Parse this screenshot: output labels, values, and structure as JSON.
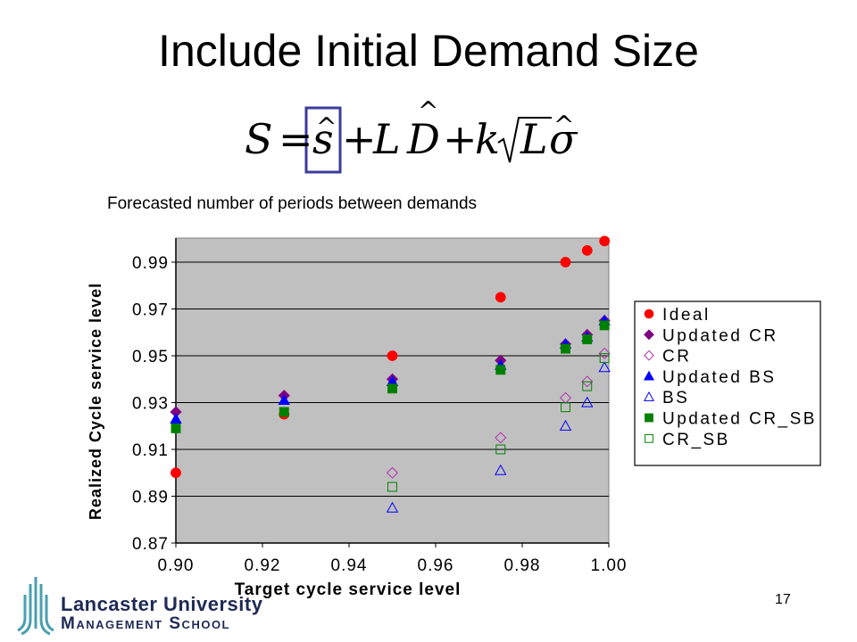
{
  "slide": {
    "title": "Include Initial Demand Size",
    "subtitle": "Forecasted number of periods between demands",
    "page_number": "17",
    "logo": {
      "line1": "Lancaster University",
      "line2": "Management School"
    }
  },
  "formula": {
    "S": "S",
    "eq": "=",
    "s": "s",
    "plus1": "+",
    "L1": "L",
    "D": "D",
    "plus2": "+",
    "k": "k",
    "L2": "L",
    "sigma": "σ",
    "hat": "^",
    "highlight_color": "#3b3b9c"
  },
  "chart_data": {
    "type": "scatter",
    "title": "",
    "xlabel": "Target cycle service level",
    "ylabel": "Realized Cycle service level",
    "xlim": [
      0.9,
      1.0
    ],
    "ylim": [
      0.87,
      1.0
    ],
    "xticks": [
      "0.90",
      "0.92",
      "0.94",
      "0.96",
      "0.98",
      "1.00"
    ],
    "yticks": [
      "0.87",
      "0.89",
      "0.91",
      "0.93",
      "0.95",
      "0.97",
      "0.99"
    ],
    "grid": "horizontal",
    "plot_background": "#c0c0c0",
    "legend_position": "right",
    "series": [
      {
        "name": "Ideal",
        "marker": "circle",
        "filled": true,
        "color": "#ff0000",
        "x": [
          0.9,
          0.925,
          0.95,
          0.975,
          0.99,
          0.995,
          0.999
        ],
        "y": [
          0.9,
          0.925,
          0.95,
          0.975,
          0.99,
          0.995,
          0.999
        ]
      },
      {
        "name": "Updated CR",
        "marker": "diamond",
        "filled": true,
        "color": "#800080",
        "x": [
          0.9,
          0.925,
          0.95,
          0.975,
          0.99,
          0.995,
          0.999
        ],
        "y": [
          0.926,
          0.933,
          0.94,
          0.948,
          0.955,
          0.959,
          0.965
        ]
      },
      {
        "name": "CR",
        "marker": "diamond",
        "filled": false,
        "color": "#b030b0",
        "x": [
          0.95,
          0.975,
          0.99,
          0.995,
          0.999
        ],
        "y": [
          0.9,
          0.915,
          0.932,
          0.939,
          0.951
        ]
      },
      {
        "name": "Updated BS",
        "marker": "triangle",
        "filled": true,
        "color": "#0000ff",
        "x": [
          0.9,
          0.925,
          0.95,
          0.975,
          0.99,
          0.995,
          0.999
        ],
        "y": [
          0.923,
          0.931,
          0.939,
          0.946,
          0.955,
          0.958,
          0.965
        ]
      },
      {
        "name": "BS",
        "marker": "triangle",
        "filled": false,
        "color": "#0000ff",
        "x": [
          0.95,
          0.975,
          0.99,
          0.995,
          0.999
        ],
        "y": [
          0.885,
          0.901,
          0.92,
          0.93,
          0.945
        ]
      },
      {
        "name": "Updated CR_SB",
        "marker": "square",
        "filled": true,
        "color": "#008000",
        "x": [
          0.9,
          0.925,
          0.95,
          0.975,
          0.99,
          0.995,
          0.999
        ],
        "y": [
          0.919,
          0.926,
          0.936,
          0.944,
          0.953,
          0.957,
          0.963
        ]
      },
      {
        "name": "CR_SB",
        "marker": "square",
        "filled": false,
        "color": "#008000",
        "x": [
          0.95,
          0.975,
          0.99,
          0.995,
          0.999
        ],
        "y": [
          0.894,
          0.91,
          0.928,
          0.937,
          0.949
        ]
      }
    ]
  }
}
